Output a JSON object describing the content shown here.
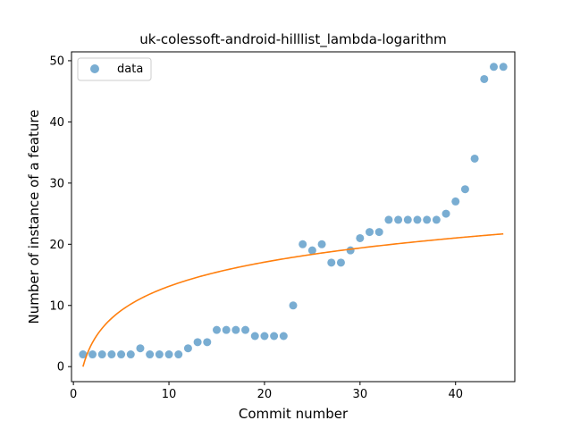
{
  "chart_data": {
    "type": "scatter",
    "title": "uk-colessoft-android-hilllist_lambda-logarithm",
    "xlabel": "Commit number",
    "ylabel": "Number of instance of a feature",
    "xlim": [
      -0.2,
      46.2
    ],
    "ylim": [
      -2.45,
      51.45
    ],
    "xticks": [
      0,
      10,
      20,
      30,
      40
    ],
    "yticks": [
      0,
      10,
      20,
      30,
      40,
      50
    ],
    "grid": false,
    "legend": {
      "placement": "top-left",
      "entries": [
        "data"
      ]
    },
    "series": [
      {
        "name": "data",
        "kind": "scatter",
        "color": "#1f77b4",
        "x": [
          1,
          2,
          3,
          4,
          5,
          6,
          7,
          8,
          9,
          10,
          11,
          12,
          13,
          14,
          15,
          16,
          17,
          18,
          19,
          20,
          21,
          22,
          23,
          24,
          25,
          26,
          27,
          28,
          29,
          30,
          31,
          32,
          33,
          34,
          35,
          36,
          37,
          38,
          39,
          40,
          41,
          42,
          43,
          44,
          45
        ],
        "y": [
          2,
          2,
          2,
          2,
          2,
          2,
          3,
          2,
          2,
          2,
          2,
          3,
          4,
          4,
          6,
          6,
          6,
          6,
          5,
          5,
          5,
          5,
          10,
          20,
          19,
          20,
          17,
          17,
          19,
          21,
          22,
          22,
          24,
          24,
          24,
          24,
          24,
          24,
          25,
          27,
          29,
          34,
          47,
          49,
          49
        ]
      },
      {
        "kind": "fit-line",
        "color": "#ff7f0e",
        "fit": {
          "form": "a*ln(x)+b",
          "a": 5.7,
          "b": 0,
          "x_range": [
            1,
            45
          ]
        }
      }
    ]
  }
}
